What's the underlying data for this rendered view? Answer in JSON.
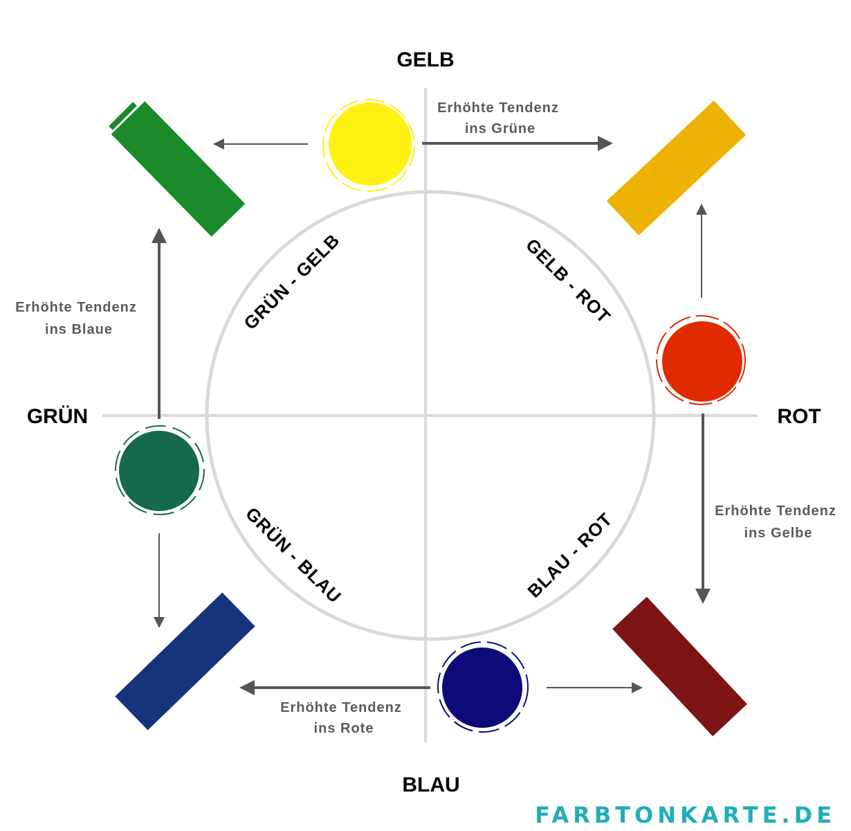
{
  "axes": {
    "top": "GELB",
    "right": "ROT",
    "bottom": "BLAU",
    "left": "GRÜN"
  },
  "quadrants": {
    "top_left": "GRÜN - GELB",
    "top_right": "GELB - ROT",
    "bottom_left": "GRÜN - BLAU",
    "bottom_right": "BLAU - ROT"
  },
  "tendencies": {
    "top": [
      "Erhöhte Tendenz",
      "ins Grüne"
    ],
    "left": [
      "Erhöhte Tendenz",
      "ins Blaue"
    ],
    "right": [
      "Erhöhte Tendenz",
      "ins Gelbe"
    ],
    "bottom": [
      "Erhöhte Tendenz",
      "ins Rote"
    ]
  },
  "colors": {
    "yellow": "#FFF212",
    "red": "#E02A00",
    "green": "#156A4E",
    "navy": "#0E0A7A",
    "stroke_green": "#1A8A2A",
    "stroke_gold": "#ECB304",
    "stroke_blue": "#15347C",
    "stroke_maroon": "#7D1416",
    "arrow": "#555555",
    "brand": "#22AEB5"
  },
  "logo": "FARBTONKARTE.DE"
}
